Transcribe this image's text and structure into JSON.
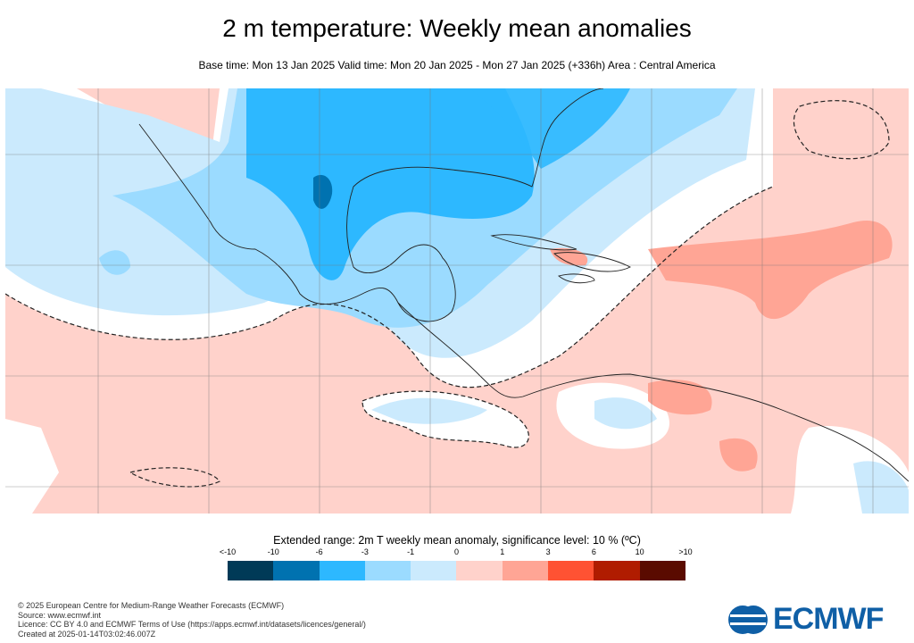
{
  "title": "2 m temperature: Weekly mean anomalies",
  "subtitle": "Base time: Mon 13 Jan 2025 Valid time: Mon 20 Jan 2025 - Mon 27 Jan 2025 (+336h) Area : Central America",
  "legend": {
    "title": "Extended range: 2m T weekly mean anomaly, significance level: 10 % (ºC)",
    "ticks": [
      "<-10",
      "-10",
      "-6",
      "-3",
      "-1",
      "0",
      "1",
      "3",
      "6",
      "10",
      ">10"
    ],
    "colors": [
      "#003a57",
      "#0072b0",
      "#2db8ff",
      "#9bdbff",
      "#cbeafd",
      "#ffd2cb",
      "#ffa595",
      "#ff5233",
      "#b01c00",
      "#5a0b00"
    ]
  },
  "map": {
    "area": "Central America",
    "ocean_default_color": "#ffd2cb",
    "significance_contour": "dashed",
    "grid": true
  },
  "footer": {
    "lines": [
      "© 2025 European Centre for Medium-Range Weather Forecasts (ECMWF)",
      "Source: www.ecmwf.int",
      "Licence: CC BY 4.0 and ECMWF Terms of Use (https://apps.ecmwf.int/datasets/licences/general/)",
      "Created at 2025-01-14T03:02:46.007Z"
    ]
  },
  "logo": {
    "text": "ECMWF",
    "color": "#0f5fa6"
  }
}
